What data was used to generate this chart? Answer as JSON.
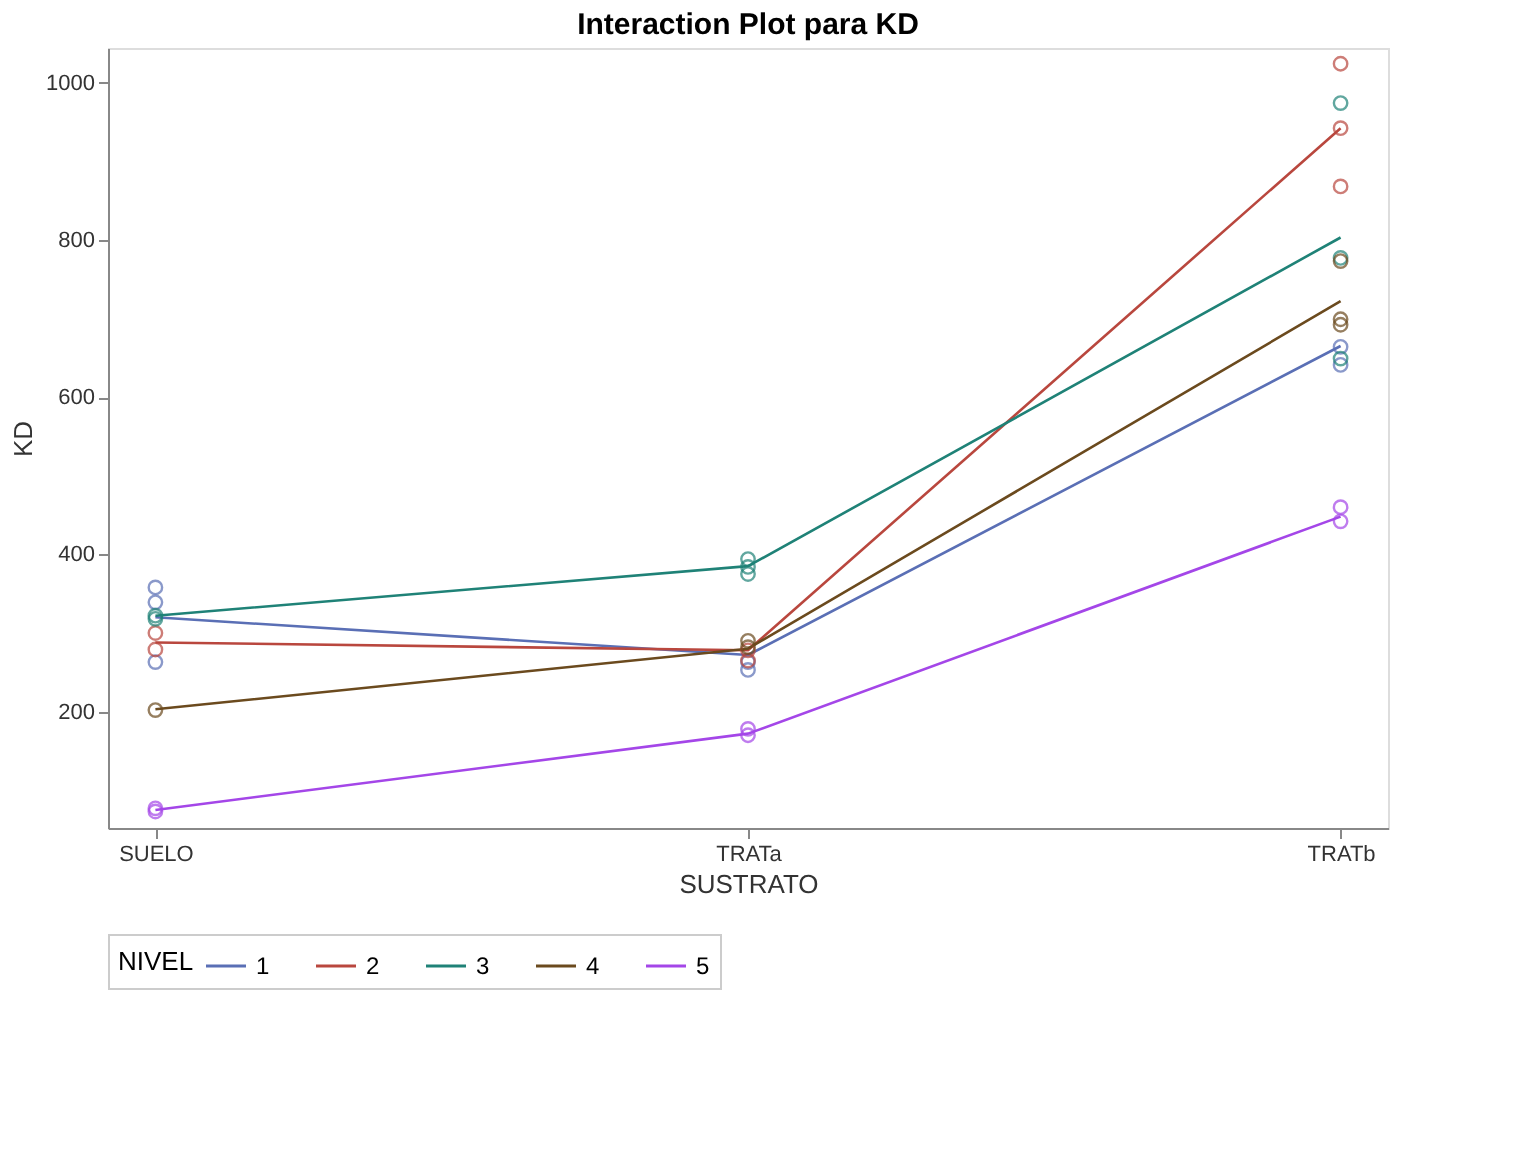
{
  "chart_data": {
    "type": "line",
    "title": "Interaction Plot para KD",
    "xlabel": "SUSTRATO",
    "ylabel": "KD",
    "legend_title": "NIVEL",
    "legend": "bottom",
    "grid": false,
    "categories": [
      "SUELO",
      "TRATa",
      "TRATb"
    ],
    "ylim": [
      52,
      1044
    ],
    "yticks": [
      200,
      400,
      600,
      800,
      1000
    ],
    "series": [
      {
        "name": "1",
        "marker": "none",
        "color": "#5a6fb5",
        "values": [
          320,
          272,
          665
        ]
      },
      {
        "name": "2",
        "marker": "none",
        "color": "#b9473e",
        "values": [
          288,
          278,
          942
        ]
      },
      {
        "name": "3",
        "marker": "none",
        "color": "#1f8277",
        "values": [
          322,
          385,
          803
        ]
      },
      {
        "name": "4",
        "marker": "none",
        "color": "#6b4a1e",
        "values": [
          203,
          280,
          722
        ]
      },
      {
        "name": "5",
        "marker": "none",
        "color": "#a446e8",
        "values": [
          75,
          172,
          448
        ]
      },
      {
        "type": "scatter",
        "marker": "circle",
        "color": "#5a6fb5",
        "x": [
          "SUELO",
          "SUELO",
          "SUELO",
          "TRATa",
          "TRATa",
          "TRATb",
          "TRATb"
        ],
        "values": [
          358,
          339,
          263,
          263,
          253,
          664,
          641
        ]
      },
      {
        "type": "scatter",
        "marker": "circle",
        "color": "#b9473e",
        "x": [
          "SUELO",
          "SUELO",
          "TRATa",
          "TRATa",
          "TRATb",
          "TRATb",
          "TRATb"
        ],
        "values": [
          300,
          279,
          278,
          265,
          1024,
          942,
          868
        ]
      },
      {
        "type": "scatter",
        "marker": "circle",
        "color": "#1f8277",
        "x": [
          "SUELO",
          "SUELO",
          "TRATa",
          "TRATa",
          "TRATa",
          "TRATb",
          "TRATb",
          "TRATb"
        ],
        "values": [
          318,
          322,
          394,
          384,
          375,
          974,
          777,
          649
        ]
      },
      {
        "type": "scatter",
        "marker": "circle",
        "color": "#6b4a1e",
        "x": [
          "SUELO",
          "TRATa",
          "TRATa",
          "TRATb",
          "TRATb",
          "TRATb"
        ],
        "values": [
          202,
          290,
          282,
          773,
          699,
          692
        ]
      },
      {
        "type": "scatter",
        "marker": "circle",
        "color": "#a446e8",
        "x": [
          "SUELO",
          "SUELO",
          "TRATa",
          "TRATa",
          "TRATb",
          "TRATb"
        ],
        "values": [
          77,
          73,
          178,
          170,
          460,
          442
        ]
      }
    ]
  }
}
